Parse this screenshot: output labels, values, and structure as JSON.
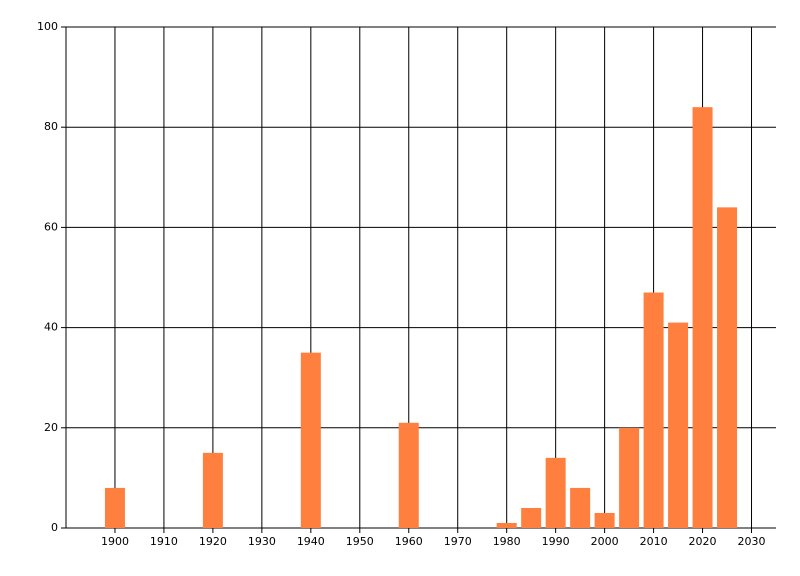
{
  "chart_data": {
    "type": "bar",
    "x": [
      1900,
      1920,
      1940,
      1960,
      1980,
      1985,
      1990,
      1995,
      2000,
      2005,
      2010,
      2015,
      2020,
      2025
    ],
    "values": [
      8,
      15,
      35,
      21,
      1,
      4,
      14,
      8,
      3,
      20,
      47,
      41,
      84,
      64
    ],
    "color": "#ff7f3f",
    "xlim": [
      1890,
      2035
    ],
    "xticks": [
      1900,
      1910,
      1920,
      1930,
      1940,
      1950,
      1960,
      1970,
      1980,
      1990,
      2000,
      2010,
      2020,
      2030
    ],
    "ylim": [
      0,
      100
    ],
    "yticks": [
      0,
      20,
      40,
      60,
      80,
      100
    ],
    "grid": true
  }
}
